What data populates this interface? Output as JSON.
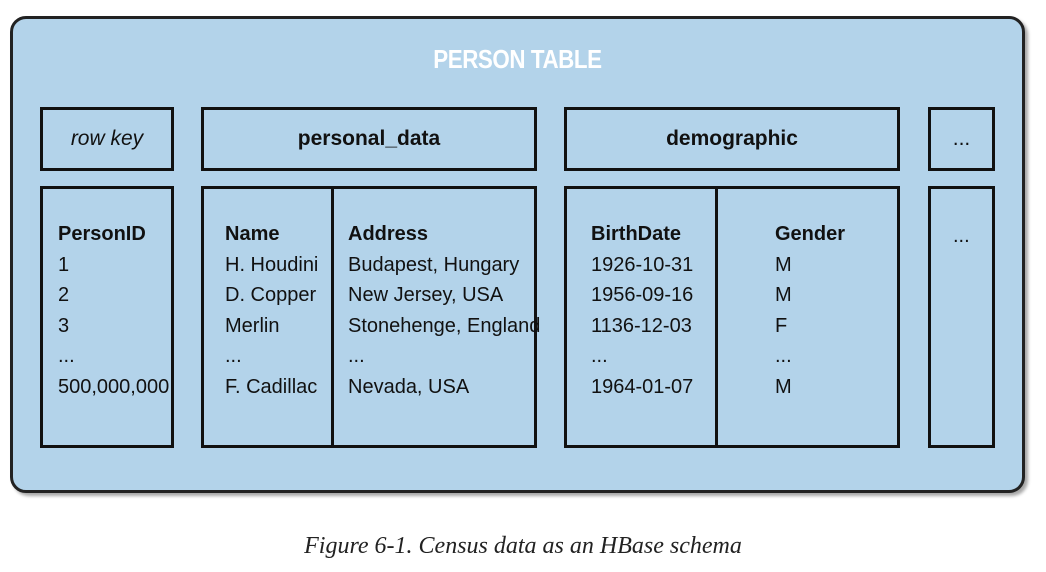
{
  "diagram": {
    "title": "PERSON TABLE",
    "headers": {
      "row_key": "row key",
      "personal_data": "personal_data",
      "demographic": "demographic",
      "more": "..."
    },
    "columns": {
      "person_id": {
        "header": "PersonID",
        "values": [
          "1",
          "2",
          "3",
          "...",
          "500,000,000"
        ]
      },
      "name": {
        "header": "Name",
        "values": [
          "H. Houdini",
          "D. Copper",
          "Merlin",
          "...",
          "F. Cadillac"
        ]
      },
      "address": {
        "header": "Address",
        "values": [
          "Budapest, Hungary",
          "New Jersey, USA",
          "Stonehenge, England",
          "...",
          "Nevada, USA"
        ]
      },
      "birth_date": {
        "header": "BirthDate",
        "values": [
          "1926-10-31",
          "1956-09-16",
          "1136-12-03",
          "...",
          "1964-01-07"
        ]
      },
      "gender": {
        "header": "Gender",
        "values": [
          "M",
          "M",
          "F",
          "...",
          "M"
        ]
      },
      "more": "..."
    }
  },
  "caption": "Figure 6-1. Census data as an HBase schema"
}
